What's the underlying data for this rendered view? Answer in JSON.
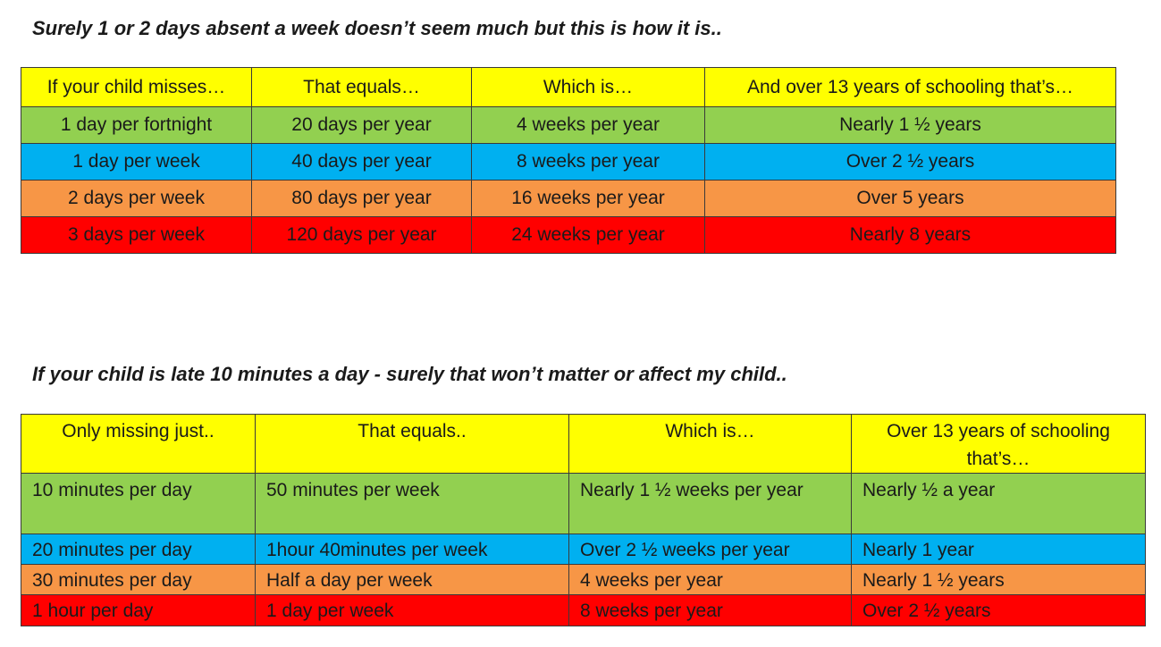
{
  "section1": {
    "heading": "Surely 1 or 2 days absent a week doesn’t seem much but this is how it is..",
    "headers": [
      "If your child misses…",
      "That equals…",
      "Which is…",
      "And over 13 years of schooling that’s…"
    ],
    "rows": [
      [
        "1 day per fortnight",
        "20 days per year",
        "4 weeks per year",
        "Nearly 1 ½ years"
      ],
      [
        "1 day per week",
        "40 days per year",
        "8 weeks per year",
        "Over 2 ½ years"
      ],
      [
        "2 days per week",
        "80 days per year",
        "16 weeks per year",
        "Over 5 years"
      ],
      [
        "3 days per week",
        "120 days per year",
        "24 weeks per year",
        "Nearly 8 years"
      ]
    ]
  },
  "section2": {
    "heading": "If your child is late 10 minutes a day - surely that won’t matter or affect my child..",
    "headers": [
      "Only missing just..",
      "That equals..",
      "Which is…",
      "Over 13 years of schooling that’s…"
    ],
    "rows": [
      [
        "10 minutes per day",
        "50 minutes per week",
        "Nearly 1 ½ weeks per year",
        "Nearly ½ a year"
      ],
      [
        "20 minutes per day",
        "1hour 40minutes per week",
        "Over 2 ½ weeks per year",
        "Nearly 1 year"
      ],
      [
        "30 minutes per day",
        "Half a day per week",
        "4 weeks per year",
        "Nearly 1 ½ years"
      ],
      [
        "1 hour per day",
        "1 day per week",
        "8 weeks per year",
        "Over 2 ½ years"
      ]
    ]
  },
  "colors": {
    "header": "#ffff00",
    "row1": "#92d050",
    "row2": "#00b0f0",
    "row3": "#f79646",
    "row4": "#ff0000"
  }
}
